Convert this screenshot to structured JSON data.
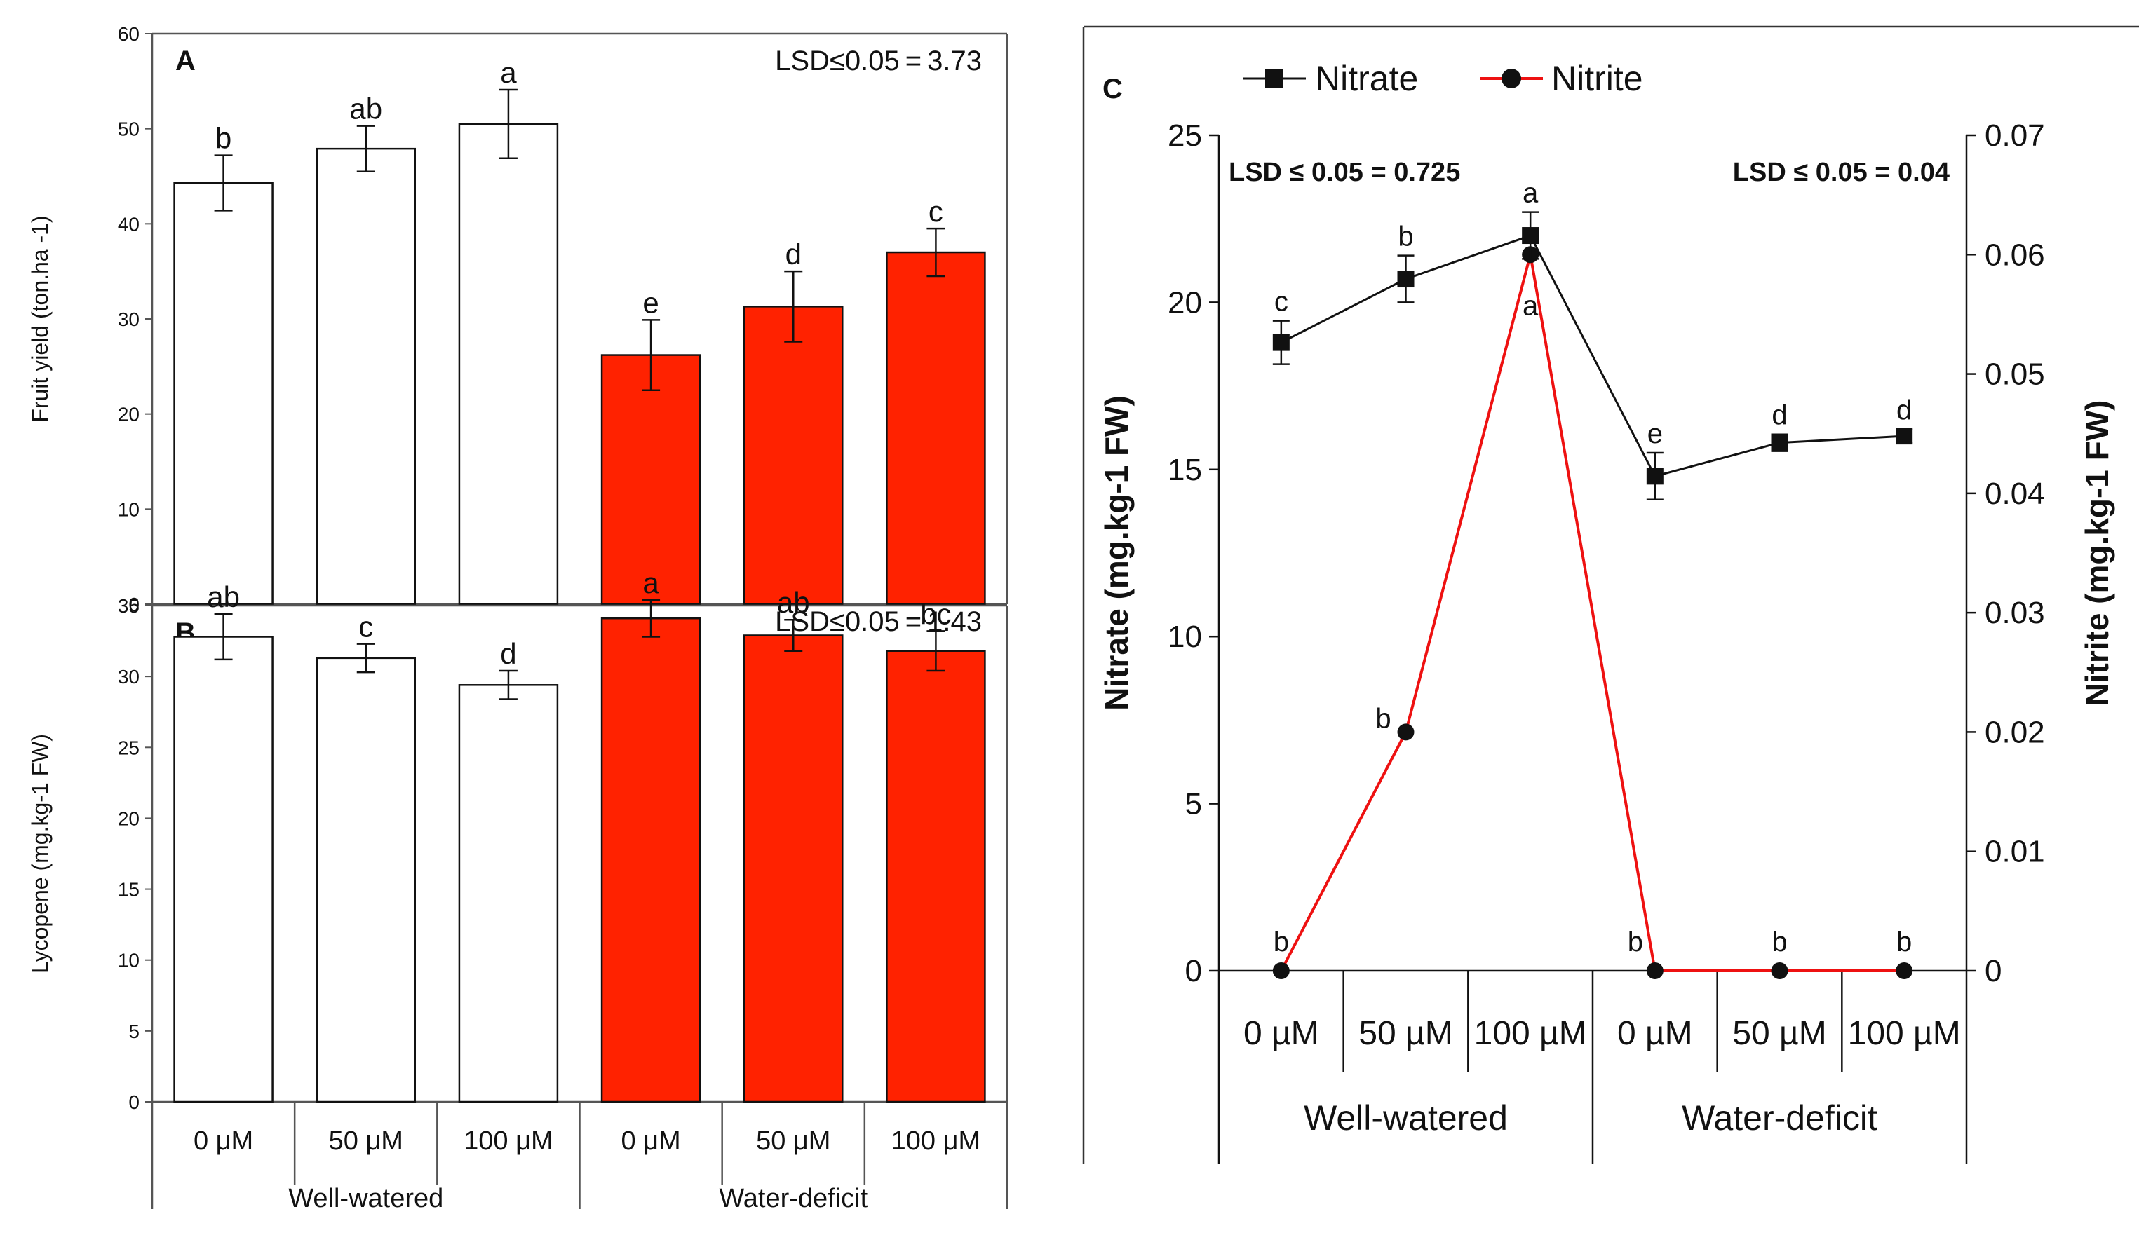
{
  "colors": {
    "well_fill": "#ffffff",
    "deficit_fill": "#ff2200",
    "bar_stroke": "#111111",
    "nitrate_line": "#111111",
    "nitrite_line": "#ee1111"
  },
  "chart_data": [
    {
      "id": "A",
      "type": "bar",
      "panel_label": "A",
      "ylabel": "Fruit yield (ton.ha -1)",
      "ylim": [
        0,
        60
      ],
      "yticks": [
        "0",
        "10",
        "20",
        "30",
        "40",
        "50",
        "60"
      ],
      "lsd": "LSD≤0.05 = 3.73",
      "categories": [
        "0 μM",
        "50 μM",
        "100 μM",
        "0 μM",
        "50 μM",
        "100 μM"
      ],
      "groups": [
        "Well-watered",
        "Water-deficit"
      ],
      "values": [
        44.3,
        47.9,
        50.5,
        26.2,
        31.3,
        37.0
      ],
      "errors": [
        2.9,
        2.4,
        3.6,
        3.7,
        3.7,
        2.5
      ],
      "letters": [
        "b",
        "ab",
        "a",
        "e",
        "d",
        "c"
      ]
    },
    {
      "id": "B",
      "type": "bar",
      "panel_label": "B",
      "ylabel": "Lycopene (mg.kg-1 FW)",
      "ylim": [
        0,
        35
      ],
      "yticks": [
        "0",
        "5",
        "10",
        "15",
        "20",
        "25",
        "30",
        "35"
      ],
      "lsd": "LSD≤0.05 = 1.43",
      "categories": [
        "0 μM",
        "50 μM",
        "100 μM",
        "0 μM",
        "50 μM",
        "100 μM"
      ],
      "groups": [
        "Well-watered",
        "Water-deficit"
      ],
      "values": [
        32.8,
        31.3,
        29.4,
        34.1,
        32.9,
        31.8
      ],
      "errors": [
        1.6,
        1.0,
        1.0,
        1.3,
        1.1,
        1.4
      ],
      "letters": [
        "ab",
        "c",
        "d",
        "a",
        "ab",
        "bc"
      ]
    },
    {
      "id": "C",
      "type": "line",
      "panel_label": "C",
      "ylabel_left": "Nitrate (mg.kg-1 FW)",
      "ylabel_right": "Nitrite (mg.kg-1 FW)",
      "ylim_left": [
        0,
        25
      ],
      "ylim_right": [
        0,
        0.07
      ],
      "yticks_left": [
        "0",
        "5",
        "10",
        "15",
        "20",
        "25"
      ],
      "yticks_right": [
        "0",
        "0.01",
        "0.02",
        "0.03",
        "0.04",
        "0.05",
        "0.06",
        "0.07"
      ],
      "lsd_left": "LSD ≤ 0.05 = 0.725",
      "lsd_right": "LSD ≤ 0.05 = 0.04",
      "categories": [
        "0 µM",
        "50 µM",
        "100 µM",
        "0 µM",
        "50 µM",
        "100 µM"
      ],
      "groups": [
        "Well-watered",
        "Water-deficit"
      ],
      "series": [
        {
          "name": "Nitrate",
          "axis": "left",
          "marker": "square",
          "values": [
            18.8,
            20.7,
            22.0,
            14.8,
            15.8,
            16.0
          ],
          "errors": [
            0.65,
            0.7,
            0.7,
            0.7,
            0.25,
            0.2
          ],
          "letters": [
            "c",
            "b",
            "a",
            "e",
            "d",
            "d"
          ]
        },
        {
          "name": "Nitrite",
          "axis": "right",
          "marker": "circle",
          "values": [
            0.0,
            0.02,
            0.06,
            0.0,
            0.0,
            0.0
          ],
          "letters": [
            "b",
            "b",
            "a",
            "b",
            "b",
            "b"
          ]
        }
      ]
    }
  ]
}
